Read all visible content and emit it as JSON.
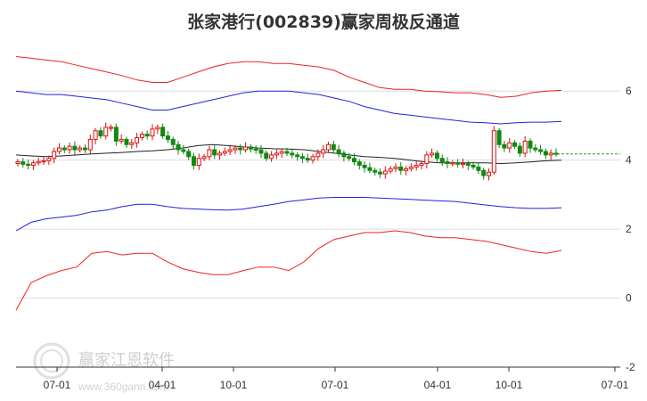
{
  "chart_data": {
    "type": "line",
    "title": "张家港行(002839)赢家周极反通道",
    "x_ticks": [
      "07-01",
      "04-01",
      "10-01",
      "07-01",
      "04-01",
      "10-01",
      "07-01"
    ],
    "y_ticks": [
      6,
      4,
      2,
      0,
      -2
    ],
    "ylim": [
      -2,
      7.4
    ],
    "grid": true,
    "legend": "none",
    "colors": {
      "outer_band": "#ee2222",
      "inner_band": "#2222dd",
      "moving_average": "#222222",
      "candle_up": "#dd1111",
      "candle_down": "#118811",
      "last_price_line": "#11aa11",
      "grid": "#dddddd"
    },
    "upper_outer": [
      7.0,
      6.95,
      6.9,
      6.85,
      6.75,
      6.65,
      6.55,
      6.45,
      6.32,
      6.25,
      6.25,
      6.4,
      6.55,
      6.7,
      6.8,
      6.85,
      6.85,
      6.8,
      6.8,
      6.75,
      6.7,
      6.6,
      6.4,
      6.25,
      6.1,
      6.05,
      6.05,
      6.0,
      5.98,
      5.95,
      5.95,
      5.9,
      5.82,
      5.85,
      5.95,
      6.0,
      6.02
    ],
    "upper_inner": [
      6.0,
      5.95,
      5.9,
      5.9,
      5.85,
      5.8,
      5.75,
      5.65,
      5.55,
      5.45,
      5.45,
      5.55,
      5.65,
      5.75,
      5.85,
      5.95,
      6.0,
      6.0,
      6.0,
      5.95,
      5.9,
      5.8,
      5.7,
      5.55,
      5.45,
      5.35,
      5.3,
      5.25,
      5.2,
      5.15,
      5.1,
      5.08,
      5.05,
      5.08,
      5.1,
      5.1,
      5.12
    ],
    "moving_average": [
      4.15,
      4.12,
      4.1,
      4.12,
      4.15,
      4.18,
      4.2,
      4.22,
      4.25,
      4.27,
      4.3,
      4.35,
      4.42,
      4.45,
      4.42,
      4.38,
      4.35,
      4.33,
      4.32,
      4.3,
      4.25,
      4.2,
      4.15,
      4.1,
      4.08,
      4.05,
      4.0,
      3.95,
      3.92,
      3.92,
      3.92,
      3.92,
      3.9,
      3.92,
      3.95,
      3.98,
      4.0
    ],
    "lower_inner": [
      1.95,
      2.2,
      2.3,
      2.35,
      2.4,
      2.5,
      2.55,
      2.65,
      2.72,
      2.72,
      2.65,
      2.6,
      2.58,
      2.56,
      2.55,
      2.58,
      2.65,
      2.72,
      2.8,
      2.85,
      2.9,
      2.92,
      2.92,
      2.92,
      2.9,
      2.88,
      2.86,
      2.84,
      2.82,
      2.8,
      2.75,
      2.7,
      2.65,
      2.62,
      2.6,
      2.6,
      2.62
    ],
    "lower_outer": [
      -0.35,
      0.45,
      0.65,
      0.8,
      0.9,
      1.3,
      1.35,
      1.25,
      1.3,
      1.3,
      1.05,
      0.85,
      0.75,
      0.68,
      0.68,
      0.8,
      0.9,
      0.9,
      0.8,
      1.05,
      1.45,
      1.7,
      1.8,
      1.9,
      1.9,
      1.95,
      1.9,
      1.8,
      1.75,
      1.75,
      1.7,
      1.65,
      1.55,
      1.45,
      1.35,
      1.3,
      1.38
    ],
    "closes": [
      3.95,
      3.88,
      3.85,
      3.92,
      3.96,
      3.98,
      4.05,
      4.25,
      4.35,
      4.3,
      4.4,
      4.3,
      4.35,
      4.3,
      4.6,
      4.85,
      4.7,
      4.95,
      4.95,
      4.55,
      4.6,
      4.45,
      4.5,
      4.65,
      4.75,
      4.7,
      4.9,
      4.95,
      4.7,
      4.6,
      4.45,
      4.3,
      4.25,
      4.1,
      3.85,
      4.05,
      4.1,
      4.3,
      4.15,
      4.2,
      4.25,
      4.3,
      4.35,
      4.3,
      4.38,
      4.32,
      4.3,
      4.2,
      4.05,
      4.15,
      4.2,
      4.25,
      4.2,
      4.15,
      4.1,
      4.05,
      4.0,
      4.1,
      4.2,
      4.3,
      4.45,
      4.3,
      4.2,
      4.1,
      4.05,
      3.95,
      3.85,
      3.78,
      3.7,
      3.65,
      3.6,
      3.68,
      3.75,
      3.8,
      3.7,
      3.75,
      3.8,
      3.85,
      3.9,
      4.15,
      4.2,
      4.05,
      3.95,
      3.9,
      3.92,
      3.88,
      3.9,
      3.85,
      3.8,
      3.7,
      3.55,
      3.65,
      4.85,
      4.45,
      4.35,
      4.5,
      4.4,
      4.2,
      4.55,
      4.35,
      4.3,
      4.25,
      4.15,
      4.2,
      4.18
    ],
    "last_price": 4.18,
    "watermark_text": "赢家江恩软件",
    "watermark_url": "www.360gann.com"
  }
}
